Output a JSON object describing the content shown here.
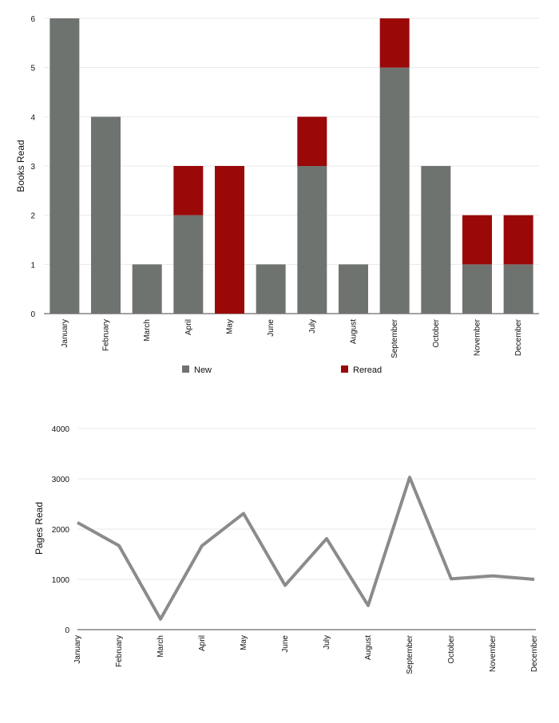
{
  "chart_data": [
    {
      "type": "bar",
      "stacked": true,
      "categories": [
        "January",
        "February",
        "March",
        "April",
        "May",
        "June",
        "July",
        "August",
        "September",
        "October",
        "November",
        "December"
      ],
      "series": [
        {
          "name": "New",
          "color": "#6f7370",
          "values": [
            6,
            4,
            1,
            2,
            0,
            1,
            3,
            1,
            5,
            3,
            1,
            1
          ]
        },
        {
          "name": "Reread",
          "color": "#9a0808",
          "values": [
            0,
            0,
            0,
            1,
            3,
            0,
            1,
            0,
            1,
            0,
            1,
            1
          ]
        }
      ],
      "ylabel": "Books Read",
      "ylim": [
        0,
        6
      ],
      "yticks": [
        0,
        1,
        2,
        3,
        4,
        5,
        6
      ],
      "grid": true,
      "legend": "bottom"
    },
    {
      "type": "line",
      "categories": [
        "January",
        "February",
        "March",
        "April",
        "May",
        "June",
        "July",
        "August",
        "September",
        "October",
        "November",
        "December"
      ],
      "series": [
        {
          "color": "#8a8c8a",
          "values": [
            2130,
            1670,
            210,
            1670,
            2310,
            880,
            1810,
            480,
            3030,
            1010,
            1070,
            1000
          ]
        }
      ],
      "ylabel": "Pages Read",
      "ylim": [
        0,
        4000
      ],
      "yticks": [
        0,
        1000,
        2000,
        3000,
        4000
      ],
      "grid": true
    }
  ]
}
